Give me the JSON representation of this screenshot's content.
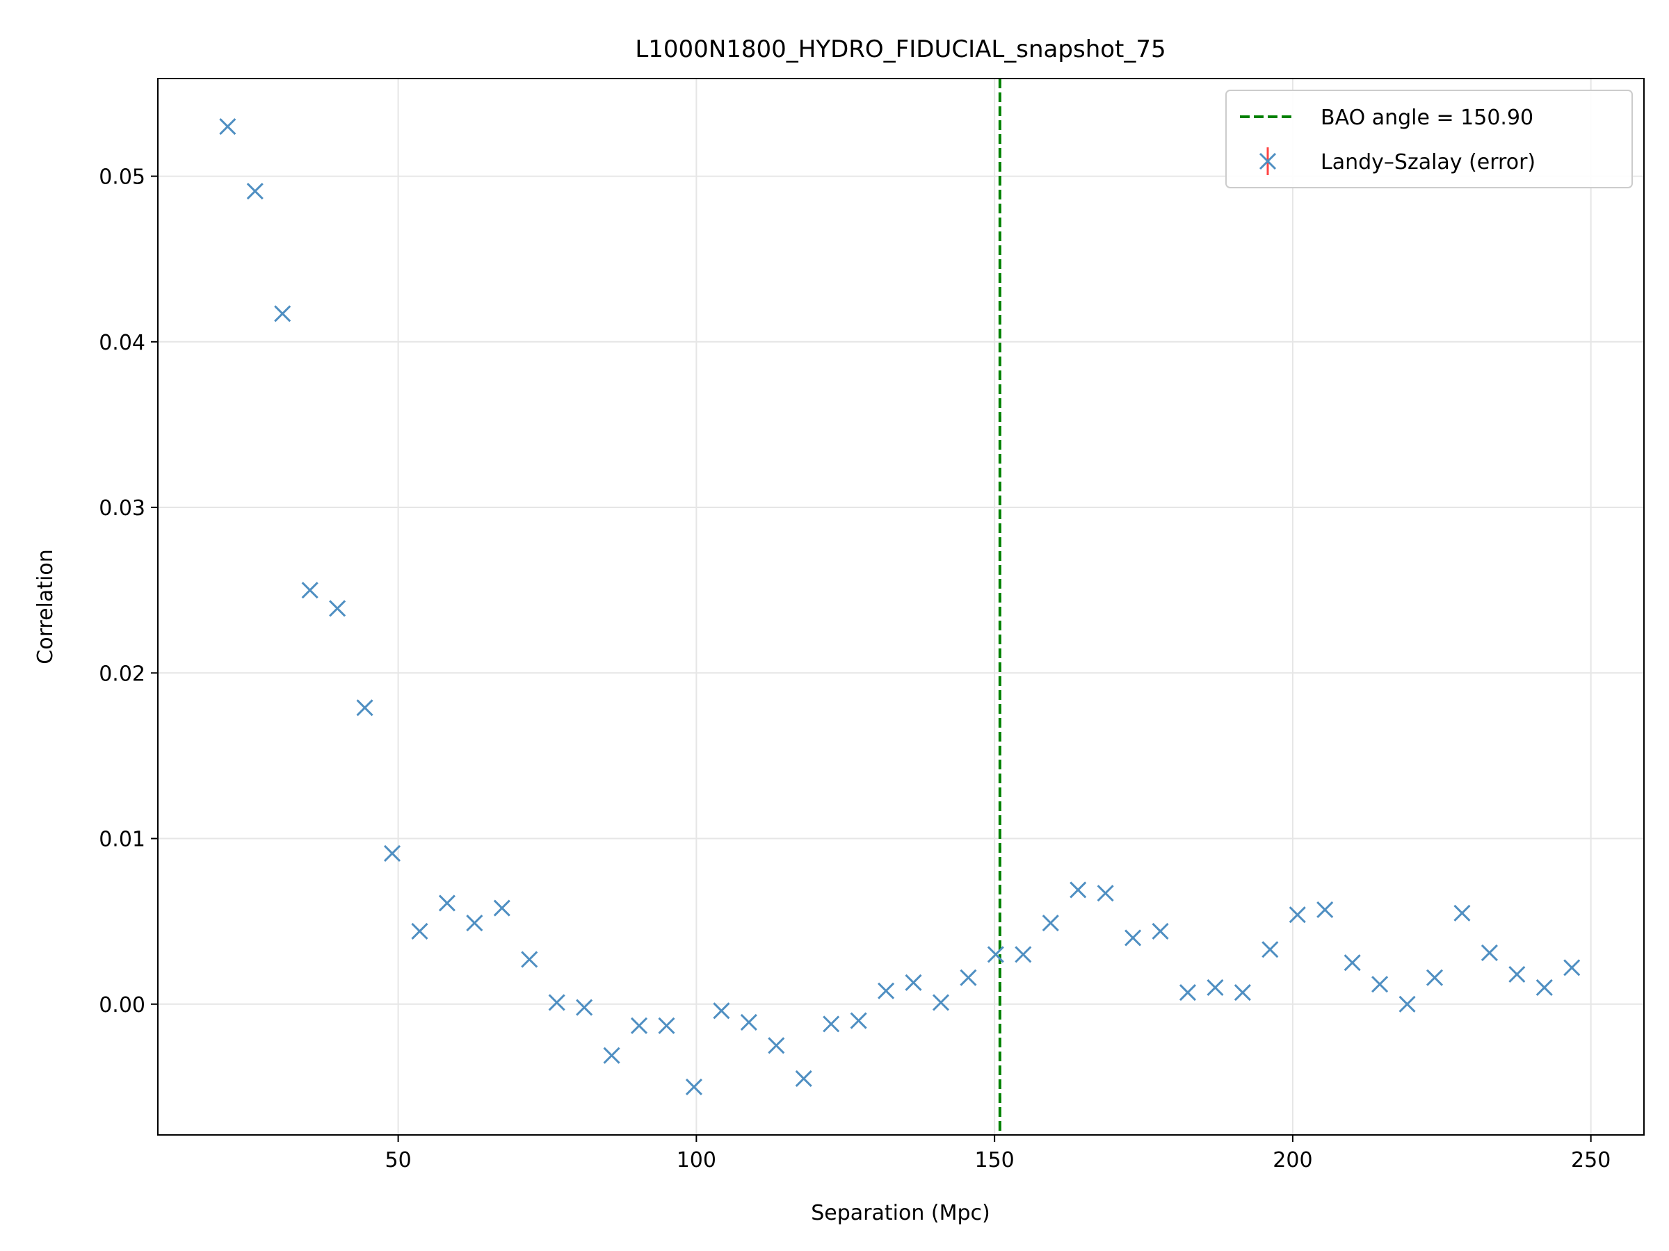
{
  "chart_data": {
    "type": "scatter",
    "title": "L1000N1800_HYDRO_FIDUCIAL_snapshot_75",
    "xlabel": "Separation (Mpc)",
    "ylabel": "Correlation",
    "xlim": [
      9.7,
      258.9
    ],
    "ylim": [
      -0.0079,
      0.0559
    ],
    "xticks": [
      50,
      100,
      150,
      200,
      250
    ],
    "xtick_labels": [
      "50",
      "100",
      "150",
      "200",
      "250"
    ],
    "yticks": [
      0.0,
      0.01,
      0.02,
      0.03,
      0.04,
      0.05
    ],
    "ytick_labels": [
      "0.00",
      "0.01",
      "0.02",
      "0.03",
      "0.04",
      "0.05"
    ],
    "grid": true,
    "legend_position": "top-right",
    "bao_line": {
      "x": 150.9,
      "label": "BAO angle = 150.90",
      "color": "#008000",
      "style": "dashed"
    },
    "series": [
      {
        "name": "Landy–Szalay (error)",
        "marker": "x",
        "color": "#4f8fc2",
        "error_color": "#ff4444",
        "x": [
          21.4,
          26.0,
          30.6,
          35.2,
          39.8,
          44.4,
          49.0,
          53.6,
          58.2,
          62.8,
          67.4,
          72.0,
          76.6,
          81.2,
          85.8,
          90.4,
          95.0,
          99.6,
          104.2,
          108.8,
          113.4,
          118.0,
          122.6,
          127.2,
          131.8,
          136.4,
          141.0,
          145.6,
          150.2,
          154.8,
          159.4,
          164.0,
          168.6,
          173.2,
          177.8,
          182.4,
          187.0,
          191.6,
          196.2,
          200.8,
          205.4,
          210.0,
          214.6,
          219.2,
          223.8,
          228.4,
          233.0,
          237.6,
          242.2,
          246.8
        ],
        "y": [
          0.053,
          0.0491,
          0.0417,
          0.025,
          0.0239,
          0.0179,
          0.0091,
          0.0044,
          0.0061,
          0.0049,
          0.0058,
          0.0027,
          0.0001,
          -0.0002,
          -0.0031,
          -0.0013,
          -0.0013,
          -0.005,
          -0.0004,
          -0.0011,
          -0.0025,
          -0.0045,
          -0.0012,
          -0.001,
          0.0008,
          0.0013,
          0.0001,
          0.0016,
          0.003,
          0.003,
          0.0049,
          0.0069,
          0.0067,
          0.004,
          0.0044,
          0.0007,
          0.001,
          0.0007,
          0.0033,
          0.0054,
          0.0057,
          0.0025,
          0.0012,
          0.0,
          0.0016,
          0.0055,
          0.0031,
          0.0018,
          0.001,
          0.0022
        ]
      }
    ]
  }
}
